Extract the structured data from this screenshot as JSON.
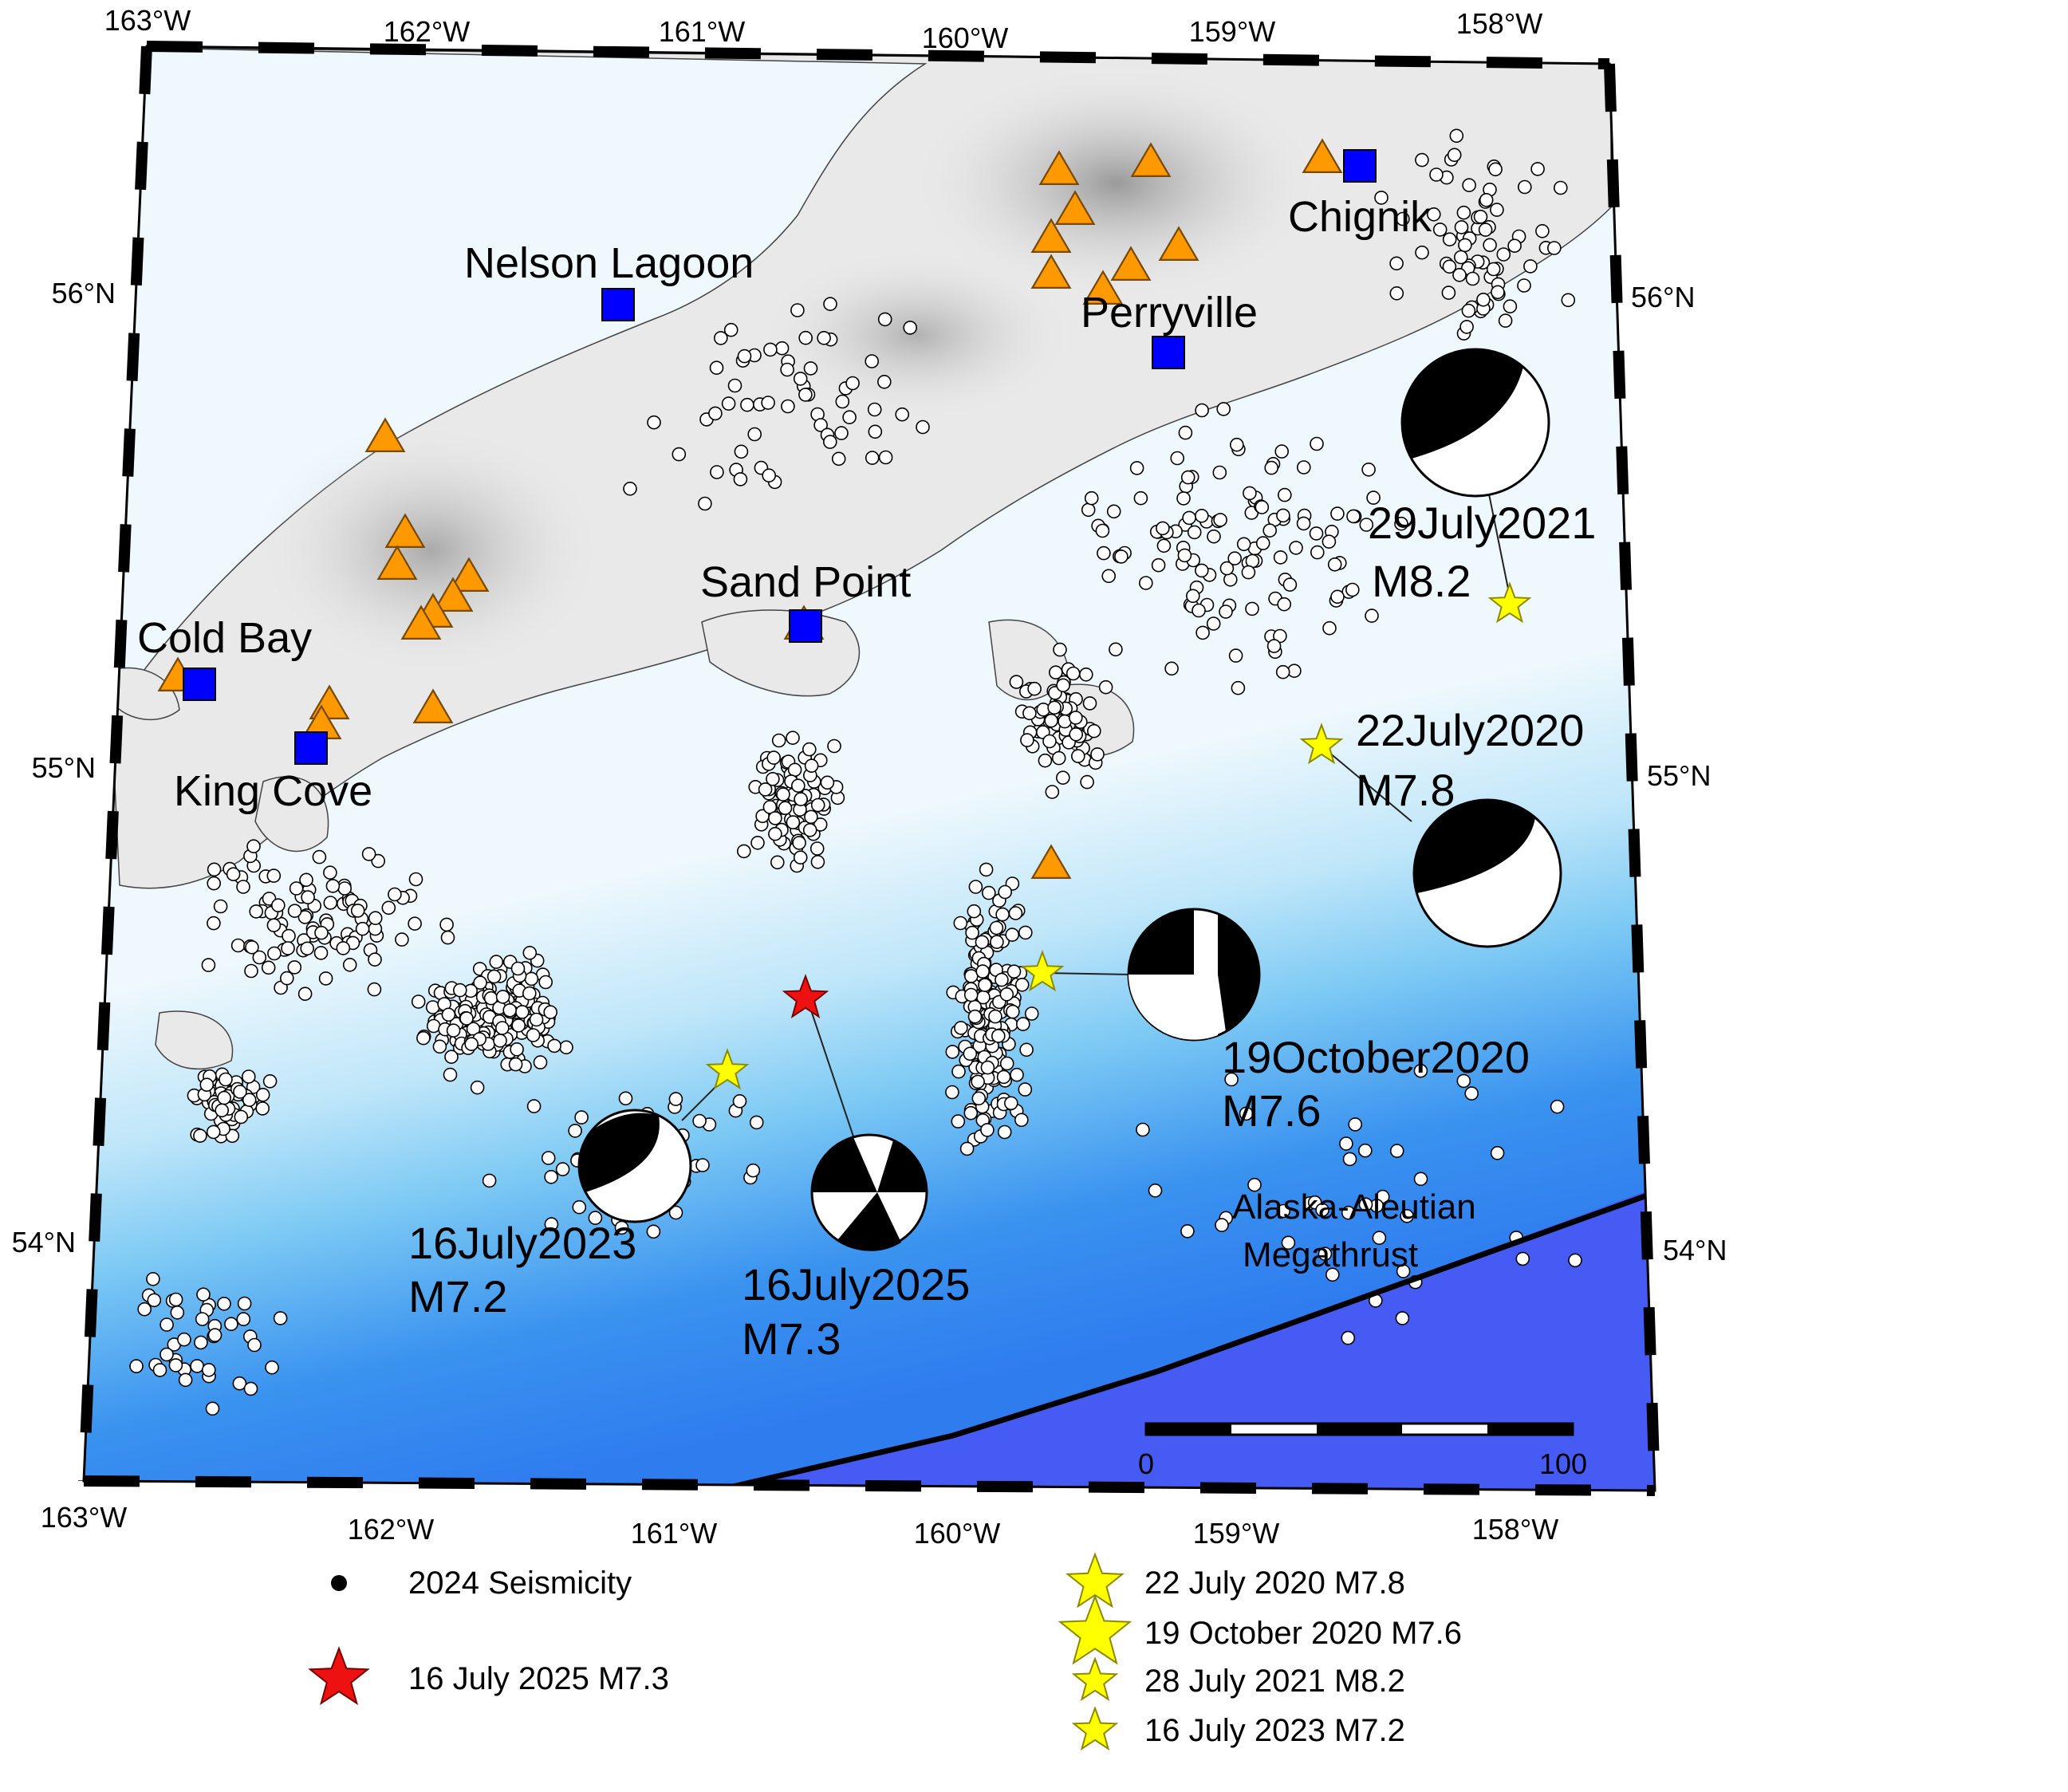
{
  "map": {
    "lon_labels_top": [
      "163°W",
      "162°W",
      "161°W",
      "160°W",
      "159°W",
      "158°W"
    ],
    "lon_labels_bottom": [
      "163°W",
      "162°W",
      "161°W",
      "160°W",
      "159°W",
      "158°W"
    ],
    "lat_labels_left": [
      "56°N",
      "55°N",
      "54°N"
    ],
    "lat_labels_right": [
      "56°N",
      "55°N",
      "54°N"
    ],
    "colors": {
      "land": "#e9e9e9",
      "shallow_sea": "#eef8fd",
      "mid_sea": "#8fd2f5",
      "deep_sea": "#2f8ff0",
      "trench": "#4a55f5",
      "town_marker": "#0000ff",
      "volcano": "#ff9900",
      "past_event_star": "#ffff00",
      "main_event_star": "#ee1111"
    },
    "icons": {
      "town": "blue-square-icon",
      "volcano": "orange-triangle-icon",
      "seismicity": "white-circle-icon",
      "focal_mechanism": "beachball-icon"
    }
  },
  "towns": [
    {
      "name": "Nelson Lagoon"
    },
    {
      "name": "Chignik"
    },
    {
      "name": "Perryville"
    },
    {
      "name": "Sand Point"
    },
    {
      "name": "Cold Bay"
    },
    {
      "name": "King Cove"
    }
  ],
  "events": [
    {
      "date": "29July2021",
      "mag": "M8.2"
    },
    {
      "date": "22July2020",
      "mag": "M7.8"
    },
    {
      "date": "19October2020",
      "mag": "M7.6"
    },
    {
      "date": "16July2023",
      "mag": "M7.2"
    },
    {
      "date": "16July2025",
      "mag": "M7.3"
    }
  ],
  "fault": {
    "line1": "Alaska-Aleutian",
    "line2": "Megathrust"
  },
  "scale_bar": {
    "start": "0",
    "end": "100"
  },
  "legend": {
    "seismicity": "2024 Seismicity",
    "main_event": "16 July 2025 M7.3",
    "past_events": [
      "22 July 2020 M7.8",
      "19 October 2020 M7.6",
      "28 July 2021 M8.2",
      "16 July 2023 M7.2"
    ]
  }
}
